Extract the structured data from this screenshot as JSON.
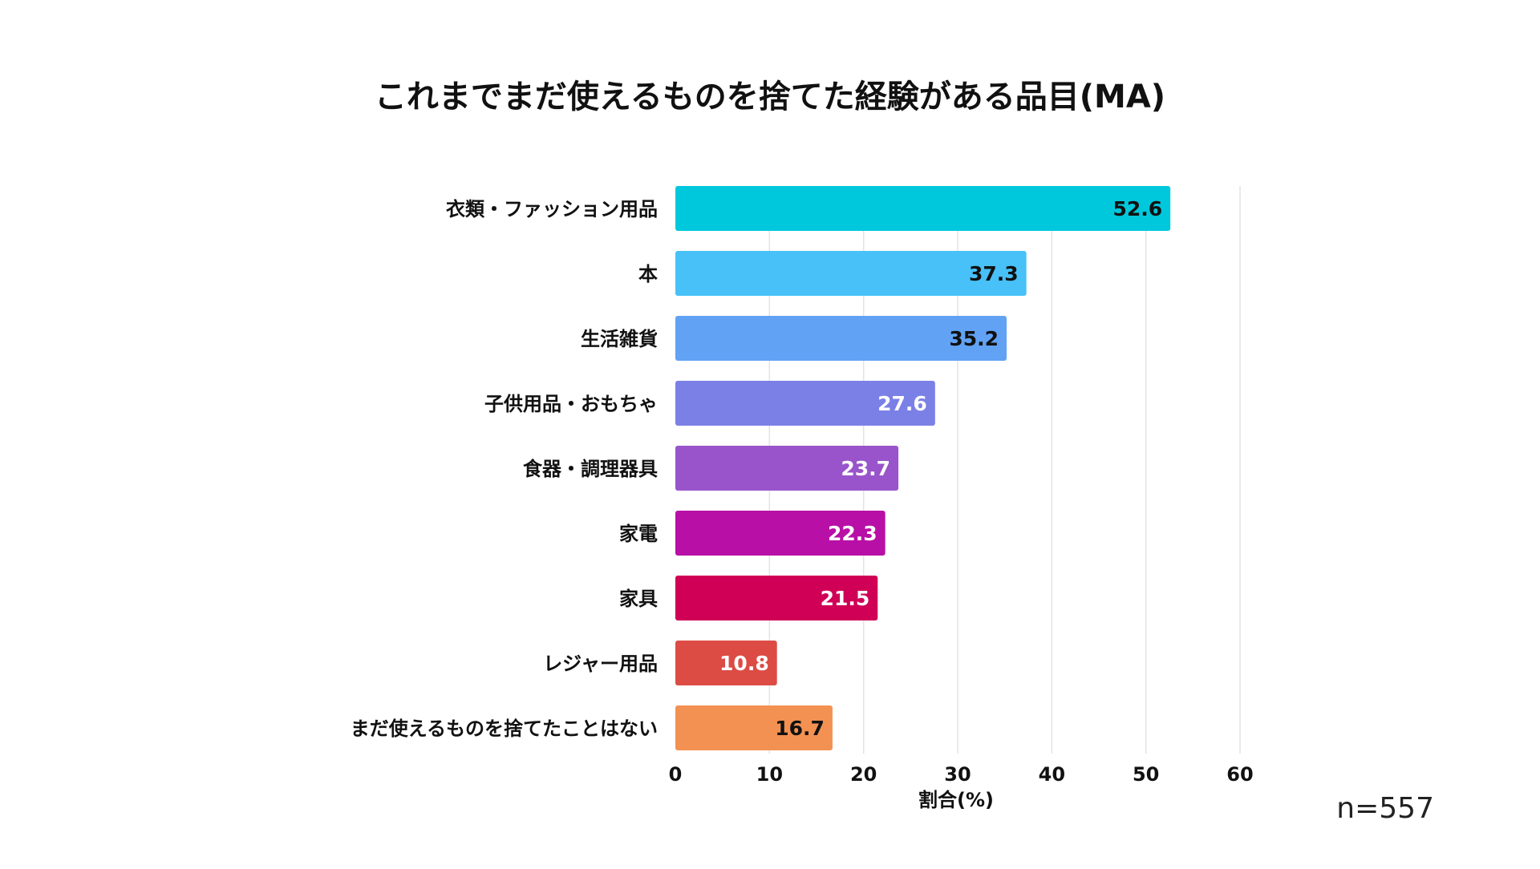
{
  "chart_data": {
    "type": "bar",
    "orientation": "horizontal",
    "title": "これまでまだ使えるものを捨てた経験がある品目(MA)",
    "categories": [
      "衣類・ファッション用品",
      "本",
      "生活雑貨",
      "子供用品・おもちゃ",
      "食器・調理器具",
      "家電",
      "家具",
      "レジャー用品",
      "まだ使えるものを捨てたことはない"
    ],
    "values": [
      52.6,
      37.3,
      35.2,
      27.6,
      23.7,
      22.3,
      21.5,
      10.8,
      16.7
    ],
    "value_labels": [
      "52.6",
      "37.3",
      "35.2",
      "27.6",
      "23.7",
      "22.3",
      "21.5",
      "10.8",
      "16.7"
    ],
    "bar_colors": [
      "#00c8dc",
      "#47c1f7",
      "#61a2f4",
      "#7b80e6",
      "#9954cb",
      "#b80fa6",
      "#cf0056",
      "#dc4c45",
      "#f39152"
    ],
    "label_colors": [
      "#111111",
      "#111111",
      "#111111",
      "#ffffff",
      "#ffffff",
      "#ffffff",
      "#ffffff",
      "#ffffff",
      "#111111"
    ],
    "xlabel": "割合(%)",
    "ylabel": "",
    "xlim": [
      0,
      60
    ],
    "xticks": [
      0,
      10,
      20,
      30,
      40,
      50,
      60
    ],
    "xtick_labels": [
      "0",
      "10",
      "20",
      "30",
      "40",
      "50",
      "60"
    ],
    "grid": true
  },
  "note": "n=557"
}
